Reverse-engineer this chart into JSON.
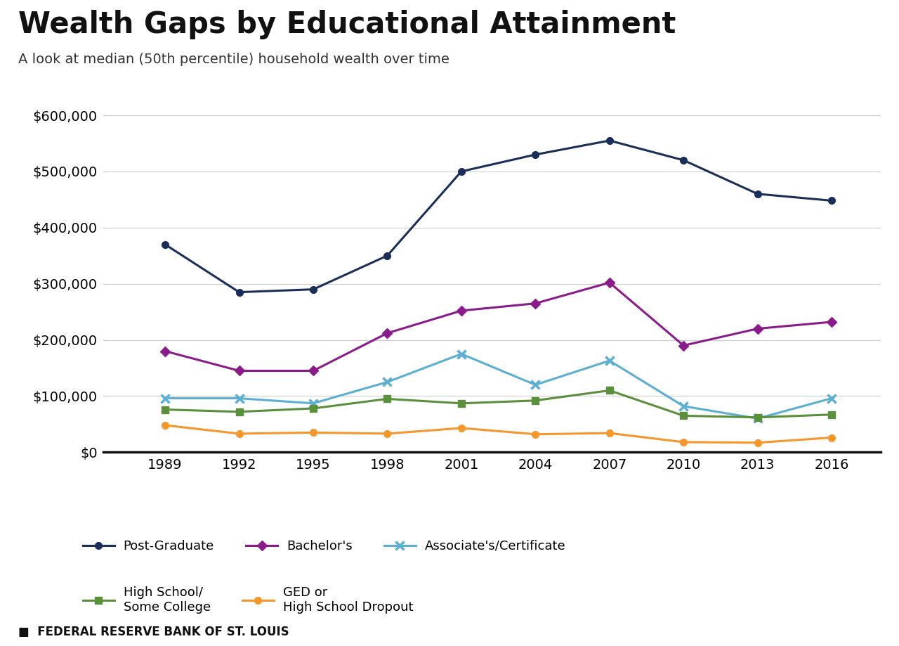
{
  "title": "Wealth Gaps by Educational Attainment",
  "subtitle": "A look at median (50th percentile) household wealth over time",
  "footer": "FEDERAL RESERVE BANK OF ST. LOUIS",
  "years": [
    1989,
    1992,
    1995,
    1998,
    2001,
    2004,
    2007,
    2010,
    2013,
    2016
  ],
  "series": [
    {
      "label": "Post-Graduate",
      "values": [
        370000,
        285000,
        290000,
        350000,
        500000,
        530000,
        555000,
        520000,
        460000,
        448000
      ],
      "color": "#1a2e5a",
      "marker": "o",
      "markersize": 7,
      "linewidth": 2.2,
      "markerfacecolor": "#1a2e5a",
      "use_x": false
    },
    {
      "label": "Bachelor's",
      "values": [
        180000,
        145000,
        145000,
        212000,
        252000,
        265000,
        302000,
        190000,
        220000,
        232000
      ],
      "color": "#8B1A8B",
      "marker": "D",
      "markersize": 7,
      "linewidth": 2.2,
      "markerfacecolor": "#8B1A8B",
      "use_x": false
    },
    {
      "label": "Associate's/Certificate",
      "values": [
        96000,
        96000,
        87000,
        125000,
        175000,
        120000,
        163000,
        82000,
        60000,
        96000
      ],
      "color": "#5baed4",
      "marker": "x",
      "markersize": 9,
      "linewidth": 2.2,
      "markerfacecolor": "none",
      "use_x": true,
      "markeredgewidth": 2.5
    },
    {
      "label": "High School/\nSome College",
      "values": [
        76000,
        72000,
        78000,
        95000,
        87000,
        92000,
        110000,
        65000,
        62000,
        67000
      ],
      "color": "#5a8f3c",
      "marker": "s",
      "markersize": 7,
      "linewidth": 2.2,
      "markerfacecolor": "#5a8f3c",
      "use_x": false
    },
    {
      "label": "GED or\nHigh School Dropout",
      "values": [
        48000,
        33000,
        35000,
        33000,
        43000,
        32000,
        34000,
        18000,
        17000,
        26000
      ],
      "color": "#f5972a",
      "marker": "o",
      "markersize": 7,
      "linewidth": 2.2,
      "markerfacecolor": "#f5972a",
      "use_x": false
    }
  ],
  "ylim": [
    0,
    650000
  ],
  "yticks": [
    0,
    100000,
    200000,
    300000,
    400000,
    500000,
    600000
  ],
  "background_color": "#ffffff",
  "grid_color": "#cccccc",
  "title_fontsize": 30,
  "subtitle_fontsize": 14,
  "tick_fontsize": 14,
  "legend_fontsize": 13,
  "footer_fontsize": 12
}
